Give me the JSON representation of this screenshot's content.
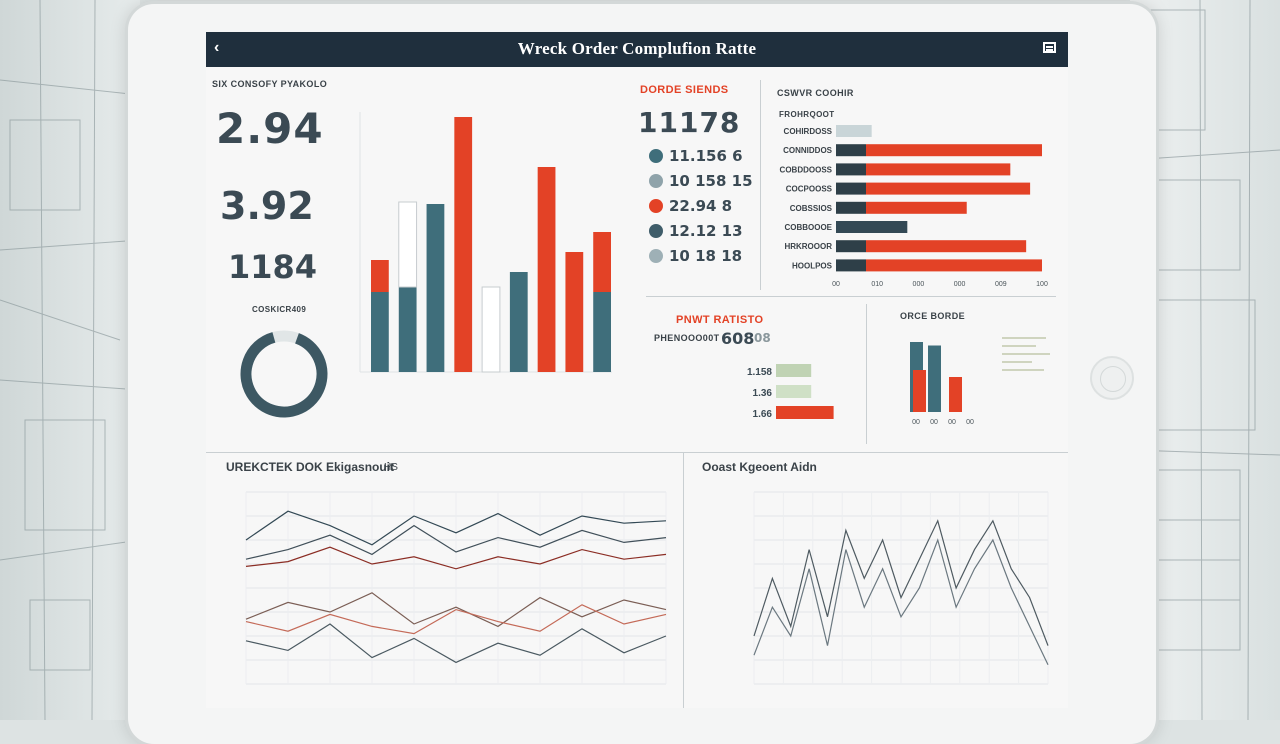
{
  "window": {
    "title": "Wreck Order Complufion Ratte",
    "back_icon": "chevron-left-icon",
    "menu_icon": "hamburger-menu-icon"
  },
  "colors": {
    "navy": "#1f2f3d",
    "teal": "#3f6e7b",
    "red": "#e34226",
    "slate": "#334955",
    "grid": "#d7dbdd"
  },
  "kpi": {
    "caption": "SIX CONSOFY PYAKOLO",
    "values": [
      "2.94",
      "3.92",
      "1184"
    ],
    "donut_caption": "COSKICR409",
    "donut_fraction": 0.9
  },
  "orders": {
    "title": "DORDE SIENDS",
    "total": "11178",
    "legend": [
      {
        "text": "11.156 6",
        "color": "#3f6e7b"
      },
      {
        "text": "10 158 15",
        "color": "#8fa3aa"
      },
      {
        "text": "22.94 8",
        "color": "#e34226"
      },
      {
        "text": "12.12 13",
        "color": "#3f5d6a"
      },
      {
        "text": "10 18 18",
        "color": "#9eb0b6"
      }
    ]
  },
  "hbar": {
    "title": "CSWVR COOHIR",
    "header": "FROHRQOOT",
    "rows": [
      {
        "label": "COHIRDOSS",
        "value": 0.45,
        "color": "#c9d5d8"
      },
      {
        "label": "CONNIDDOS",
        "value": 2.6,
        "color": "#e34226"
      },
      {
        "label": "COBDDOOSS",
        "value": 2.2,
        "color": "#e34226"
      },
      {
        "label": "COCPOOSS",
        "value": 2.45,
        "color": "#e34226"
      },
      {
        "label": "COBSSIOS",
        "value": 1.65,
        "color": "#e34226"
      },
      {
        "label": "COBBOOOE",
        "value": 0.9,
        "color": "#334955"
      },
      {
        "label": "HRKROOOR",
        "value": 2.4,
        "color": "#e34226"
      },
      {
        "label": "HOOLPOS",
        "value": 2.6,
        "color": "#e34226"
      }
    ],
    "ticks": [
      "00",
      "010",
      "000",
      "000",
      "009",
      "100"
    ],
    "xmax": 2.6
  },
  "mini": {
    "title": "PNWT Ratisto",
    "line1_label": "PHENOOO00T",
    "line1_value": "608",
    "line2_value": "08",
    "rows": [
      {
        "label": "1.158",
        "value": 0.55,
        "color": "#c0d3b4"
      },
      {
        "label": "1.36",
        "value": 0.55,
        "color": "#cfe0c6"
      },
      {
        "label": "1.66",
        "value": 0.9,
        "color": "#e34226"
      }
    ]
  },
  "small_bars": {
    "title": "ORCE BORDE",
    "categories": [
      "00",
      "00",
      "00",
      "00"
    ],
    "series": [
      {
        "color": "#3f6e7b",
        "values": [
          1.0,
          0.95,
          0,
          0
        ]
      },
      {
        "color": "#e34226",
        "values": [
          0.6,
          0,
          0.5,
          0
        ]
      }
    ]
  },
  "trend_left": {
    "title": "UREKCTEK DOK Ekigasnouit",
    "subtitle": "HS"
  },
  "trend_right": {
    "title": "Ooast Kgeoent Aidn"
  },
  "chart_data": [
    {
      "type": "bar",
      "title": "",
      "categories": [
        "1",
        "2",
        "3",
        "4",
        "5",
        "6",
        "7",
        "8",
        "9"
      ],
      "series": [
        {
          "values": [
            80,
            85,
            168,
            0,
            0,
            100,
            0,
            0,
            80
          ]
        },
        {
          "values": [
            32,
            0,
            0,
            255,
            0,
            0,
            205,
            120,
            60
          ]
        },
        {
          "values": [
            0,
            85,
            0,
            0,
            85,
            0,
            0,
            0,
            0
          ]
        }
      ],
      "colors": [
        "#3f6e7b",
        "#e34226",
        "#ffffff"
      ],
      "ylim": [
        0,
        260
      ]
    },
    {
      "type": "line",
      "title": "UREKCTEK DOK Ekigasnouit",
      "x": [
        0,
        1,
        2,
        3,
        4,
        5,
        6,
        7,
        8,
        9,
        10
      ],
      "series": [
        {
          "color": "#334955",
          "values": [
            6.0,
            7.2,
            6.6,
            5.8,
            7.0,
            6.3,
            7.1,
            6.2,
            7.0,
            6.7,
            6.8
          ]
        },
        {
          "color": "#41505a",
          "values": [
            5.2,
            5.6,
            6.2,
            5.4,
            6.6,
            5.5,
            6.1,
            5.7,
            6.4,
            5.9,
            6.1
          ]
        },
        {
          "color": "#8b2d24",
          "values": [
            4.9,
            5.1,
            5.7,
            5.0,
            5.3,
            4.8,
            5.3,
            5.0,
            5.6,
            5.2,
            5.4
          ]
        },
        {
          "color": "#7b5e55",
          "values": [
            2.7,
            3.4,
            3.0,
            3.8,
            2.5,
            3.2,
            2.4,
            3.6,
            2.8,
            3.5,
            3.1
          ]
        },
        {
          "color": "#c46a58",
          "values": [
            2.6,
            2.2,
            2.9,
            2.4,
            2.1,
            3.1,
            2.6,
            2.2,
            3.3,
            2.5,
            2.9
          ]
        },
        {
          "color": "#4a5961",
          "values": [
            1.8,
            1.4,
            2.5,
            1.1,
            1.9,
            0.9,
            1.7,
            1.2,
            2.3,
            1.3,
            2.0
          ]
        }
      ],
      "ylim": [
        0,
        8
      ]
    },
    {
      "type": "line",
      "title": "Ooast Kgeoent Aidn",
      "x": [
        0,
        1,
        2,
        3,
        4,
        5,
        6,
        7,
        8,
        9,
        10,
        11,
        12,
        13,
        14,
        15,
        16
      ],
      "series": [
        {
          "color": "#4e5a61",
          "values": [
            2.5,
            5.5,
            3.0,
            7.0,
            3.5,
            8.0,
            5.5,
            7.5,
            4.5,
            6.5,
            8.5,
            5.0,
            7.0,
            8.5,
            6.0,
            4.5,
            2.0
          ]
        },
        {
          "color": "#6b7880",
          "values": [
            1.5,
            4.0,
            2.5,
            6.0,
            2.0,
            7.0,
            4.0,
            6.0,
            3.5,
            5.0,
            7.5,
            4.0,
            6.0,
            7.5,
            5.0,
            3.0,
            1.0
          ]
        }
      ],
      "ylim": [
        0,
        10
      ]
    }
  ]
}
